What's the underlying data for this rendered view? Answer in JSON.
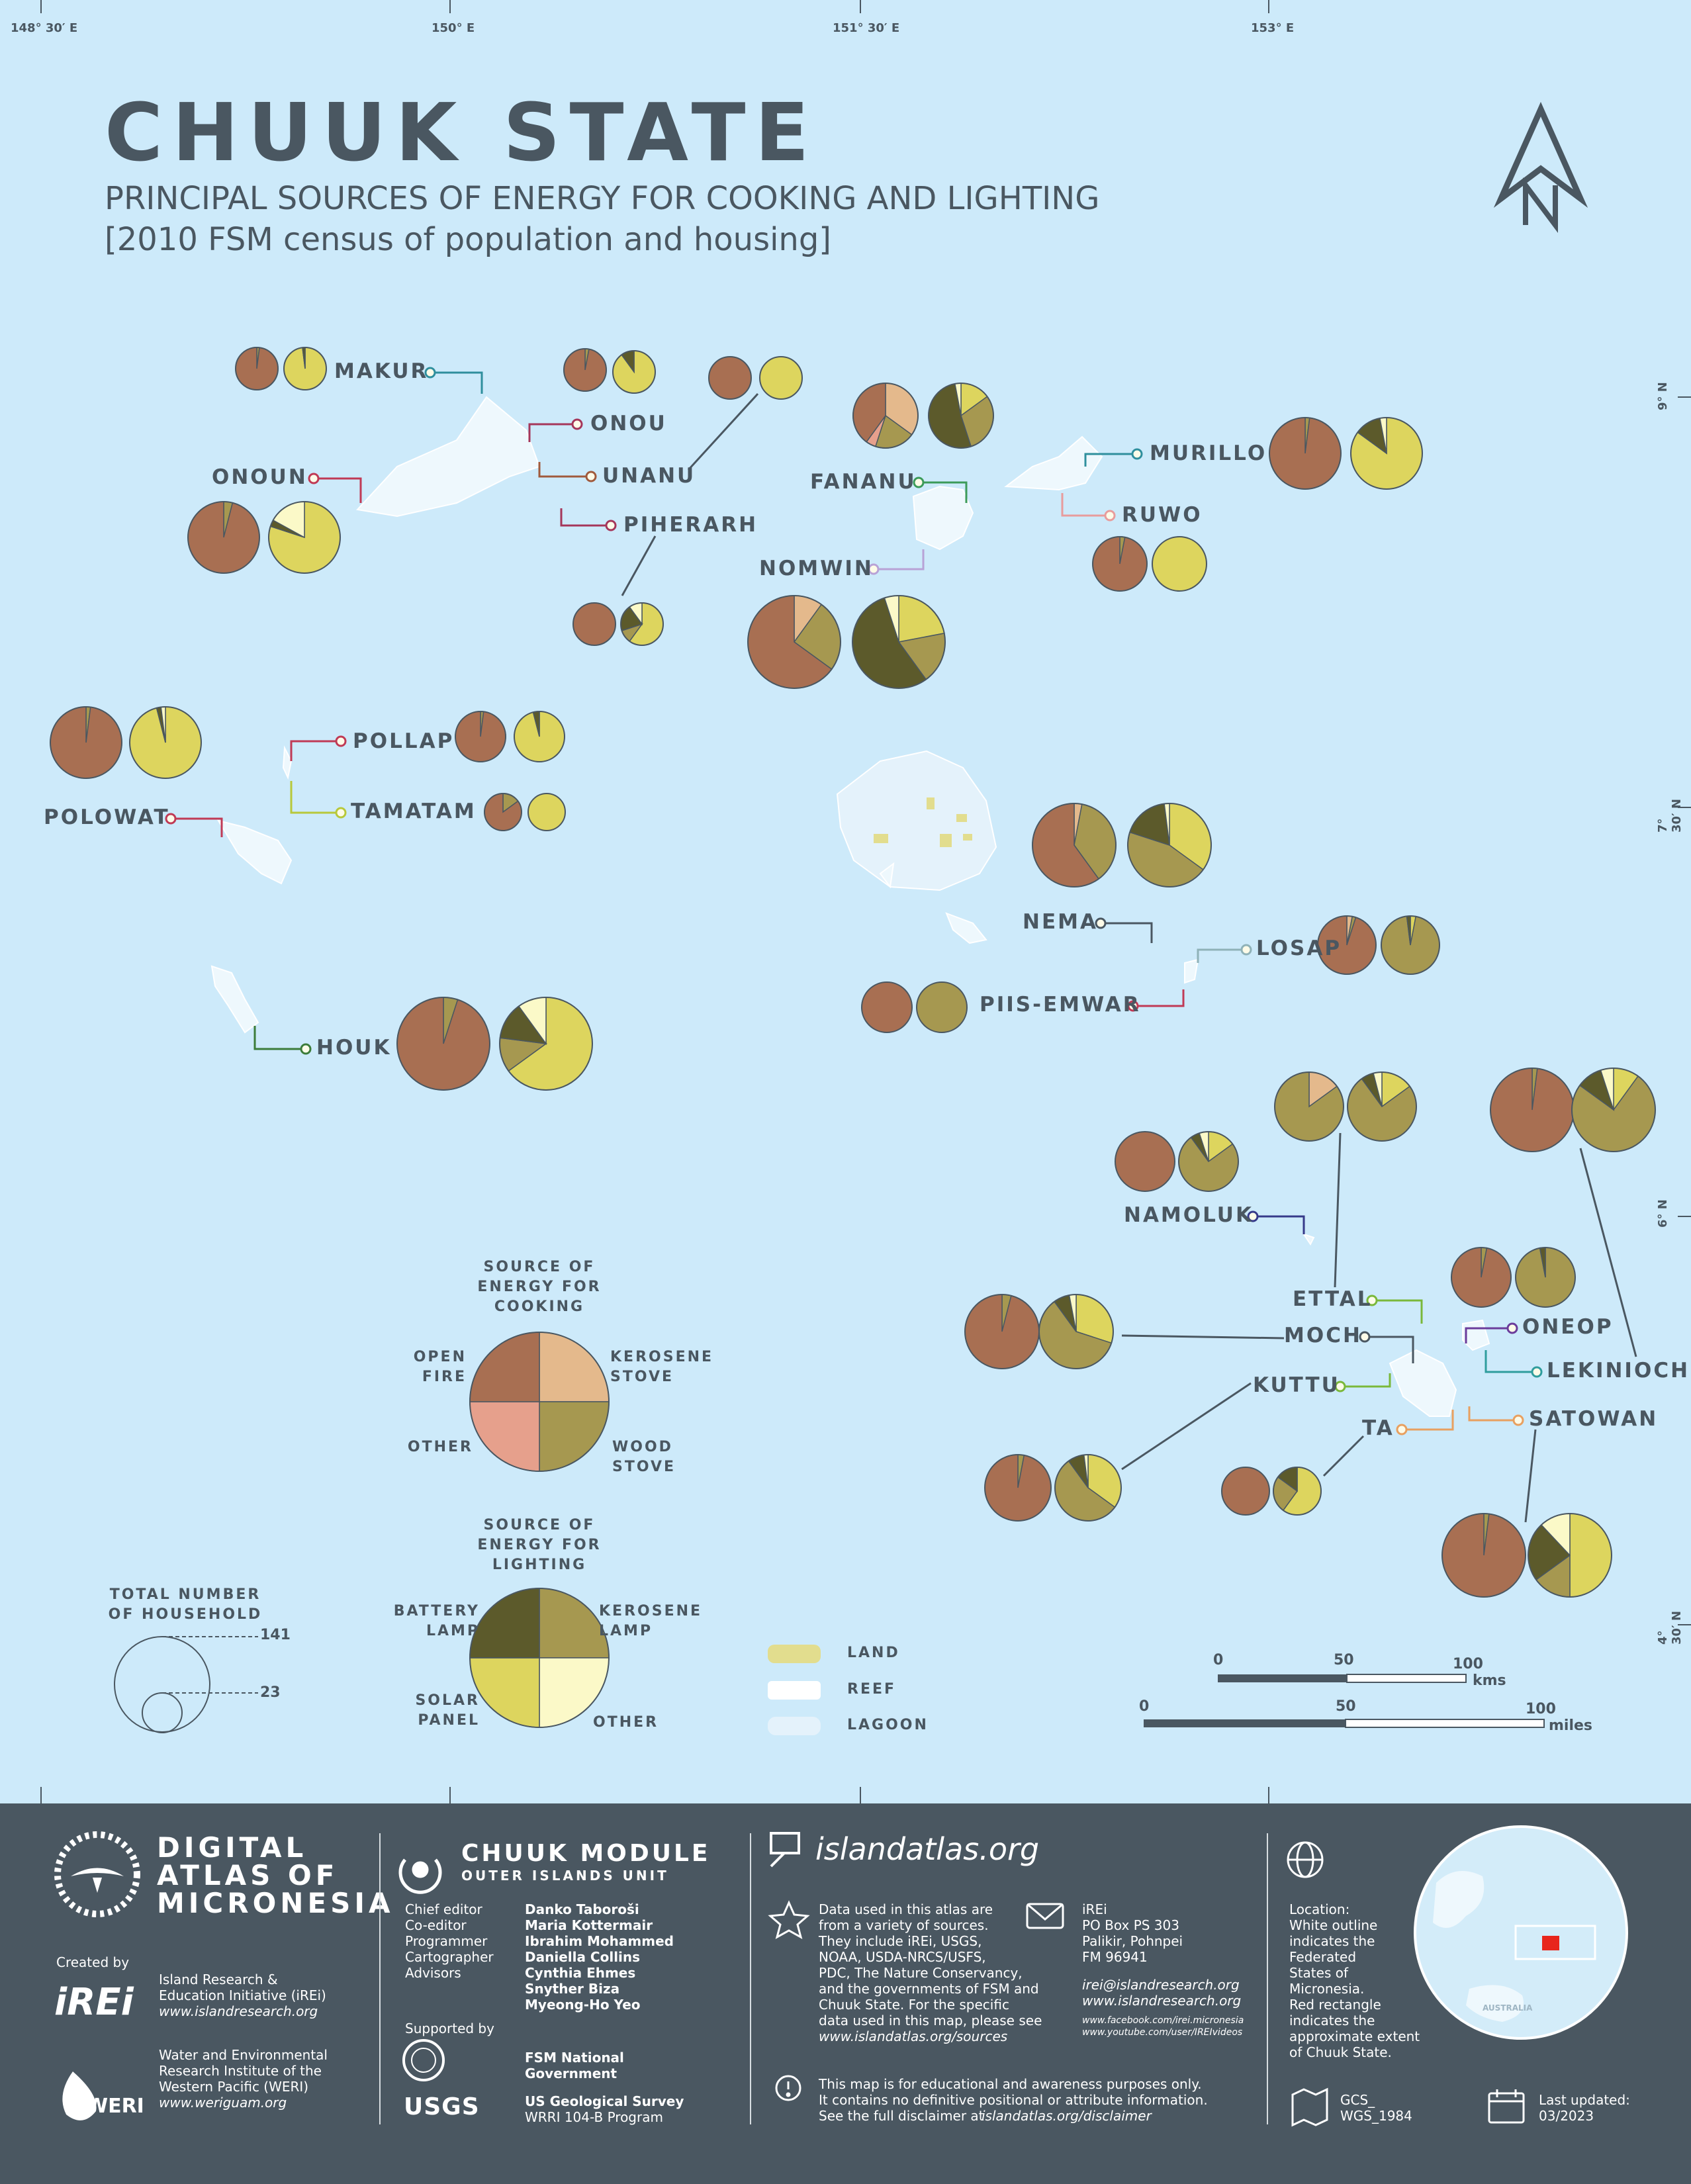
{
  "title": "CHUUK STATE",
  "subtitle": "PRINCIPAL SOURCES OF ENERGY FOR COOKING AND LIGHTING",
  "subtitle2": "[2010 FSM census of population and housing]",
  "graticule": {
    "longitudes": [
      "148° 30′ E",
      "150° E",
      "151° 30′ E",
      "153° E"
    ],
    "latitudes": [
      "9° N",
      "7° 30′ N",
      "6° N",
      "4° 30′ N"
    ]
  },
  "north_arrow": "N",
  "colors": {
    "water": "#cdeafa",
    "open_fire": "#a86f52",
    "kerosene_stove": "#e4b98c",
    "other_cooking": "#e6a08c",
    "wood_stove": "#a69850",
    "battery_lamp": "#5c5a2b",
    "kerosene_lamp": "#a69850",
    "solar_panel": "#ddd55e",
    "other_lighting": "#fbf9c8",
    "land": "#e2dd8e",
    "reef": "#f8fdff",
    "lagoon": "#e4f2fb"
  },
  "islands": [
    "MAKUR",
    "ONOU",
    "UNANU",
    "ONOUN",
    "PIHERARH",
    "FANANU",
    "MURILLO",
    "RUWO",
    "NOMWIN",
    "POLLAP",
    "TAMATAM",
    "POLOWAT",
    "NEMA",
    "LOSAP",
    "PIIS-EMWAR",
    "HOUK",
    "NAMOLUK",
    "ETTAL",
    "MOCH",
    "ONEOP",
    "LEKINIOCH",
    "KUTTU",
    "TA",
    "SATOWAN"
  ],
  "legend": {
    "cooking_title": "SOURCE OF ENERGY FOR COOKING",
    "cooking_open_fire": "OPEN FIRE",
    "cooking_kerosene_stove": "KEROSENE STOVE",
    "cooking_other": "OTHER",
    "cooking_wood_stove": "WOOD STOVE",
    "lighting_title": "SOURCE OF ENERGY FOR LIGHTING",
    "lighting_battery_lamp": "BATTERY LAMP",
    "lighting_kerosene_lamp": "KEROSENE LAMP",
    "lighting_solar_panel": "SOLAR PANEL",
    "lighting_other": "OTHER",
    "households_title": "TOTAL NUMBER OF HOUSEHOLD",
    "households_max": "141",
    "households_min": "23",
    "land": "LAND",
    "reef": "REEF",
    "lagoon": "LAGOON"
  },
  "scalebar": {
    "km_ticks": [
      "0",
      "50",
      "100"
    ],
    "km_unit": "kms",
    "mi_ticks": [
      "0",
      "50",
      "100"
    ],
    "mi_unit": "miles"
  },
  "footer": {
    "atlas_name": [
      "DIGITAL",
      "ATLAS OF",
      "MICRONESIA"
    ],
    "created_by": "Created by",
    "irei_name": "Island Research &",
    "irei_name2": "Education Initiative (iREi)",
    "irei_url": "www.islandresearch.org",
    "irei_logo": "iREi",
    "weri_name": "Water and Environmental",
    "weri_name2": "Research Institute of the",
    "weri_name3": "Western Pacific (WERI)",
    "weri_url": "www.weriguam.org",
    "weri_logo": "WERI",
    "module_title": "CHUUK MODULE",
    "module_sub": "OUTER ISLANDS UNIT",
    "roles": [
      "Chief editor",
      "Co-editor",
      "Programmer",
      "Cartographer",
      "Advisors"
    ],
    "people": [
      "Danko Taboroši",
      "Maria Kottermair",
      "Ibrahim Mohammed",
      "Daniella Collins",
      "Cynthia Ehmes",
      "Snyther Biza",
      "Myeong-Ho Yeo"
    ],
    "supported_by": "Supported by",
    "fsm_gov": "FSM National",
    "fsm_gov2": "Government",
    "usgs_logo": "USGS",
    "usgs_name": "US Geological Survey",
    "usgs_program": "WRRI 104-B Program",
    "site": "islandatlas.org",
    "sources": [
      "Data used in this atlas are",
      "from a variety of sources.",
      "They include iREi, USGS,",
      "NOAA, USDA-NRCS/USFS,",
      "PDC, The Nature Conservancy,",
      "and the governments of FSM and",
      "Chuuk State. For the specific",
      "data used in this map, please see"
    ],
    "sources_url": "www.islandatlas.org/sources",
    "contact": [
      "iREi",
      "PO Box PS 303",
      "Palikir, Pohnpei",
      "FM 96941"
    ],
    "contact_email": "irei@islandresearch.org",
    "contact_url": "www.islandresearch.org",
    "facebook": "www.facebook.com/irei.micronesia",
    "youtube": "www.youtube.com/user/IREIvideos",
    "disclaimer": [
      "This map is for educational and awareness purposes only.",
      "It contains no definitive positional or attribute information."
    ],
    "disclaimer3": "See the full disclaimer at",
    "disclaimer_url": "islandatlas.org/disclaimer",
    "location": [
      "Location:",
      "White outline",
      "indicates the",
      "Federated",
      "States of",
      "Micronesia.",
      "Red rectangle",
      "indicates the",
      "approximate extent",
      "of Chuuk State."
    ],
    "projection": [
      "GCS_",
      "WGS_1984"
    ],
    "updated_label": "Last updated:",
    "updated": "03/2023",
    "globe_label": "AUSTRALIA"
  }
}
